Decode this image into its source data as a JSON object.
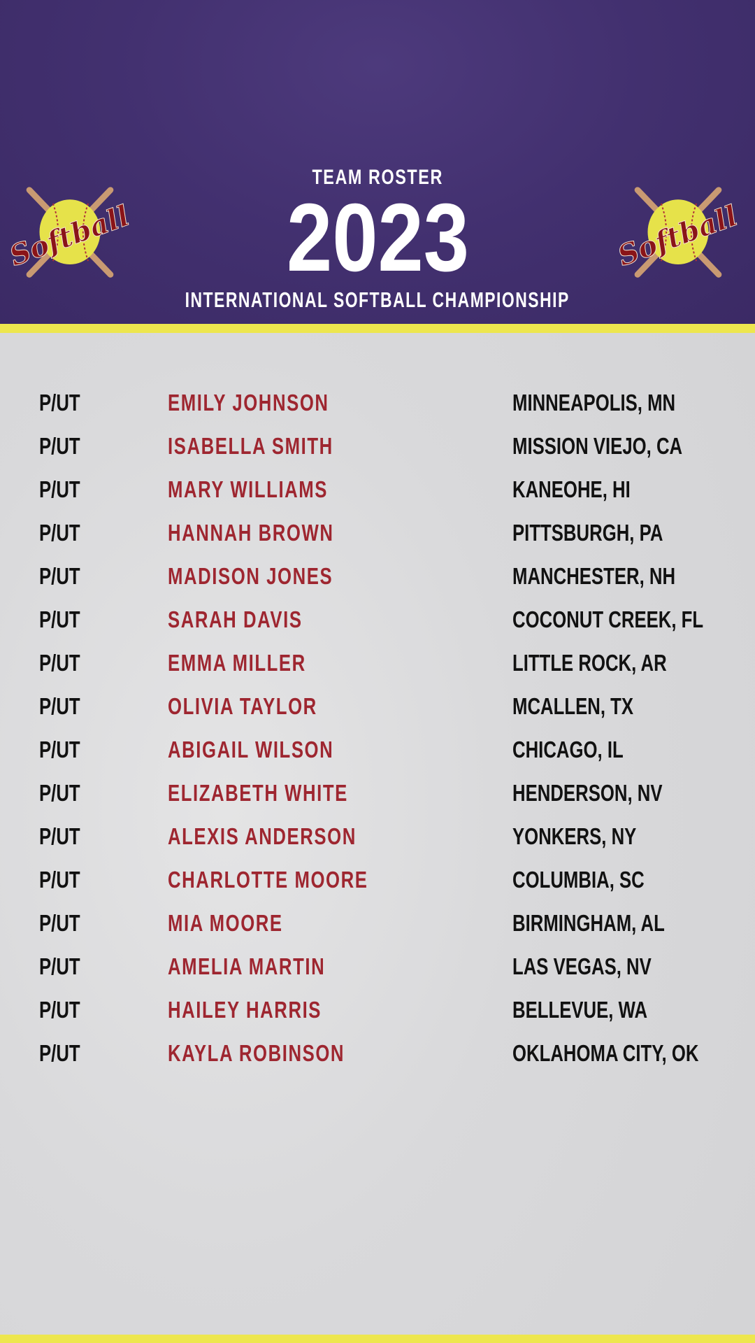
{
  "header": {
    "kicker": "TEAM ROSTER",
    "year": "2023",
    "subtitle": "INTERNATIONAL SOFTBALL CHAMPIONSHIP",
    "logo_text": "Softball"
  },
  "colors": {
    "header": "#42306f",
    "stripe": "#ede64e",
    "name": "#9e2630",
    "text": "#111111"
  },
  "roster": [
    {
      "pos": "P/UT",
      "name": "EMILY JOHNSON",
      "city": "MINNEAPOLIS, MN"
    },
    {
      "pos": "P/UT",
      "name": "ISABELLA SMITH",
      "city": "MISSION VIEJO, CA"
    },
    {
      "pos": "P/UT",
      "name": "MARY WILLIAMS",
      "city": "KANEOHE, HI"
    },
    {
      "pos": "P/UT",
      "name": "HANNAH BROWN",
      "city": "PITTSBURGH, PA"
    },
    {
      "pos": "P/UT",
      "name": "MADISON JONES",
      "city": "MANCHESTER, NH"
    },
    {
      "pos": "P/UT",
      "name": "SARAH DAVIS",
      "city": "COCONUT CREEK, FL"
    },
    {
      "pos": "P/UT",
      "name": "EMMA MILLER",
      "city": "LITTLE ROCK, AR"
    },
    {
      "pos": "P/UT",
      "name": "OLIVIA TAYLOR",
      "city": "MCALLEN, TX"
    },
    {
      "pos": "P/UT",
      "name": "ABIGAIL WILSON",
      "city": "CHICAGO, IL"
    },
    {
      "pos": "P/UT",
      "name": "ELIZABETH WHITE",
      "city": "HENDERSON, NV"
    },
    {
      "pos": "P/UT",
      "name": "ALEXIS ANDERSON",
      "city": "YONKERS, NY"
    },
    {
      "pos": "P/UT",
      "name": "CHARLOTTE MOORE",
      "city": "COLUMBIA, SC"
    },
    {
      "pos": "P/UT",
      "name": "MIA MOORE",
      "city": "BIRMINGHAM, AL"
    },
    {
      "pos": "P/UT",
      "name": "AMELIA MARTIN",
      "city": "LAS VEGAS, NV"
    },
    {
      "pos": "P/UT",
      "name": "HAILEY HARRIS",
      "city": "BELLEVUE, WA"
    },
    {
      "pos": "P/UT",
      "name": "KAYLA ROBINSON",
      "city": "OKLAHOMA CITY, OK"
    }
  ]
}
